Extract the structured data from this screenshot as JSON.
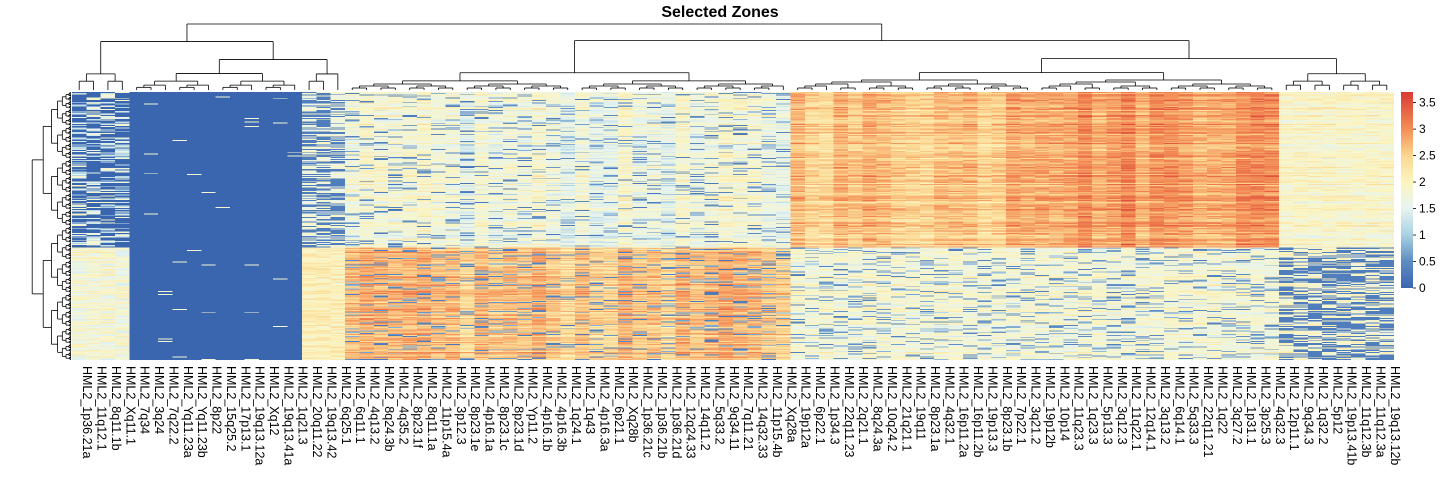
{
  "chart_data": {
    "type": "heatmap",
    "title": "Selected Zones",
    "columns": [
      "HML2_1p36.21a",
      "HML2_11q12.1",
      "HML2_8q11.1b",
      "HML2_Xq11.1",
      "HML2_7q34",
      "HML2_3q24",
      "HML2_7q22.2",
      "HML2_Yq11.23a",
      "HML2_Yq11.23b",
      "HML2_8p22",
      "HML2_15q25.2",
      "HML2_17p13.1",
      "HML2_19q13.12a",
      "HML2_Xq12",
      "HML2_19q13.41a",
      "HML2_1q21.3",
      "HML2_20q11.22",
      "HML2_19q13.42",
      "HML2_6q25.1",
      "HML2_6q11.1",
      "HML2_4q13.2",
      "HML2_8q24.3b",
      "HML2_4q35.2",
      "HML2_8p23.1f",
      "HML2_8q11.1a",
      "HML2_11p15.4a",
      "HML2_3p12.3",
      "HML2_8p23.1e",
      "HML2_4p16.1a",
      "HML2_8p23.1c",
      "HML2_8p23.1d",
      "HML2_Yp11.2",
      "HML2_4p16.1b",
      "HML2_4p16.3b",
      "HML2_1q24.1",
      "HML2_1q43",
      "HML2_4p16.3a",
      "HML2_6p21.1",
      "HML2_Xq28b",
      "HML2_1p36.21c",
      "HML2_1p36.21b",
      "HML2_1p36.21d",
      "HML2_12q24.33",
      "HML2_14q11.2",
      "HML2_5q33.2",
      "HML2_9q34.11",
      "HML2_7q11.21",
      "HML2_14q32.33",
      "HML2_11p15.4b",
      "HML2_Xq28a",
      "HML2_19p12a",
      "HML2_6p22.1",
      "HML2_1p34.3",
      "HML2_22q11.23",
      "HML2_2q21.1",
      "HML2_8q24.3a",
      "HML2_10q24.2",
      "HML2_21q21.1",
      "HML2_19q11",
      "HML2_8p23.1a",
      "HML2_4q32.1",
      "HML2_16p11.2a",
      "HML2_16p11.2b",
      "HML2_19p13.3",
      "HML2_8p23.1b",
      "HML2_7p22.1",
      "HML2_3q21.2",
      "HML2_19p12b",
      "HML2_10p14",
      "HML2_11q23.3",
      "HML2_1q23.3",
      "HML2_5p13.3",
      "HML2_3q12.3",
      "HML2_11q22.1",
      "HML2_12q14.1",
      "HML2_3q13.2",
      "HML2_6q14.1",
      "HML2_5q33.3",
      "HML2_22q11.21",
      "HML2_1q22",
      "HML2_3q27.2",
      "HML2_1p31.1",
      "HML2_3p25.3",
      "HML2_4q32.3",
      "HML2_12p11.1",
      "HML2_9q34.3",
      "HML2_1q32.2",
      "HML2_5p12",
      "HML2_19p13.41b",
      "HML2_11q12.3b",
      "HML2_11q12.3a",
      "HML2_19q13.12b"
    ],
    "column_groups": [
      {
        "from": 0,
        "to": 3,
        "profile": "left-mixed"
      },
      {
        "from": 4,
        "to": 15,
        "profile": "zero"
      },
      {
        "from": 16,
        "to": 18,
        "profile": "low-mixed"
      },
      {
        "from": 19,
        "to": 49,
        "profile": "mid-high-bottom"
      },
      {
        "from": 50,
        "to": 83,
        "profile": "high-top"
      },
      {
        "from": 84,
        "to": 91,
        "profile": "right-mixed"
      }
    ],
    "row_bands": [
      {
        "from": 0.0,
        "to": 0.58,
        "name": "upper"
      },
      {
        "from": 0.58,
        "to": 1.0,
        "name": "lower"
      }
    ],
    "n_rows": 300,
    "color_scale": {
      "domain": [
        0,
        0.5,
        1,
        1.5,
        2,
        2.5,
        3,
        3.7
      ],
      "colors": [
        "#3A66B0",
        "#5E8CC2",
        "#A9D1E3",
        "#E6F4F1",
        "#FCF5C0",
        "#FBD690",
        "#F48E56",
        "#D83A33"
      ]
    },
    "legend_ticks": [
      0,
      0.5,
      1,
      1.5,
      2,
      2.5,
      3,
      3.5
    ],
    "legend_tick_labels": [
      "0",
      "0.5",
      "1",
      "1.5",
      "2",
      "2.5",
      "3",
      "3.5"
    ],
    "vmin": 0,
    "vmax": 3.7,
    "row_dendrogram": true,
    "column_dendrogram": true,
    "legend_position": "right"
  }
}
